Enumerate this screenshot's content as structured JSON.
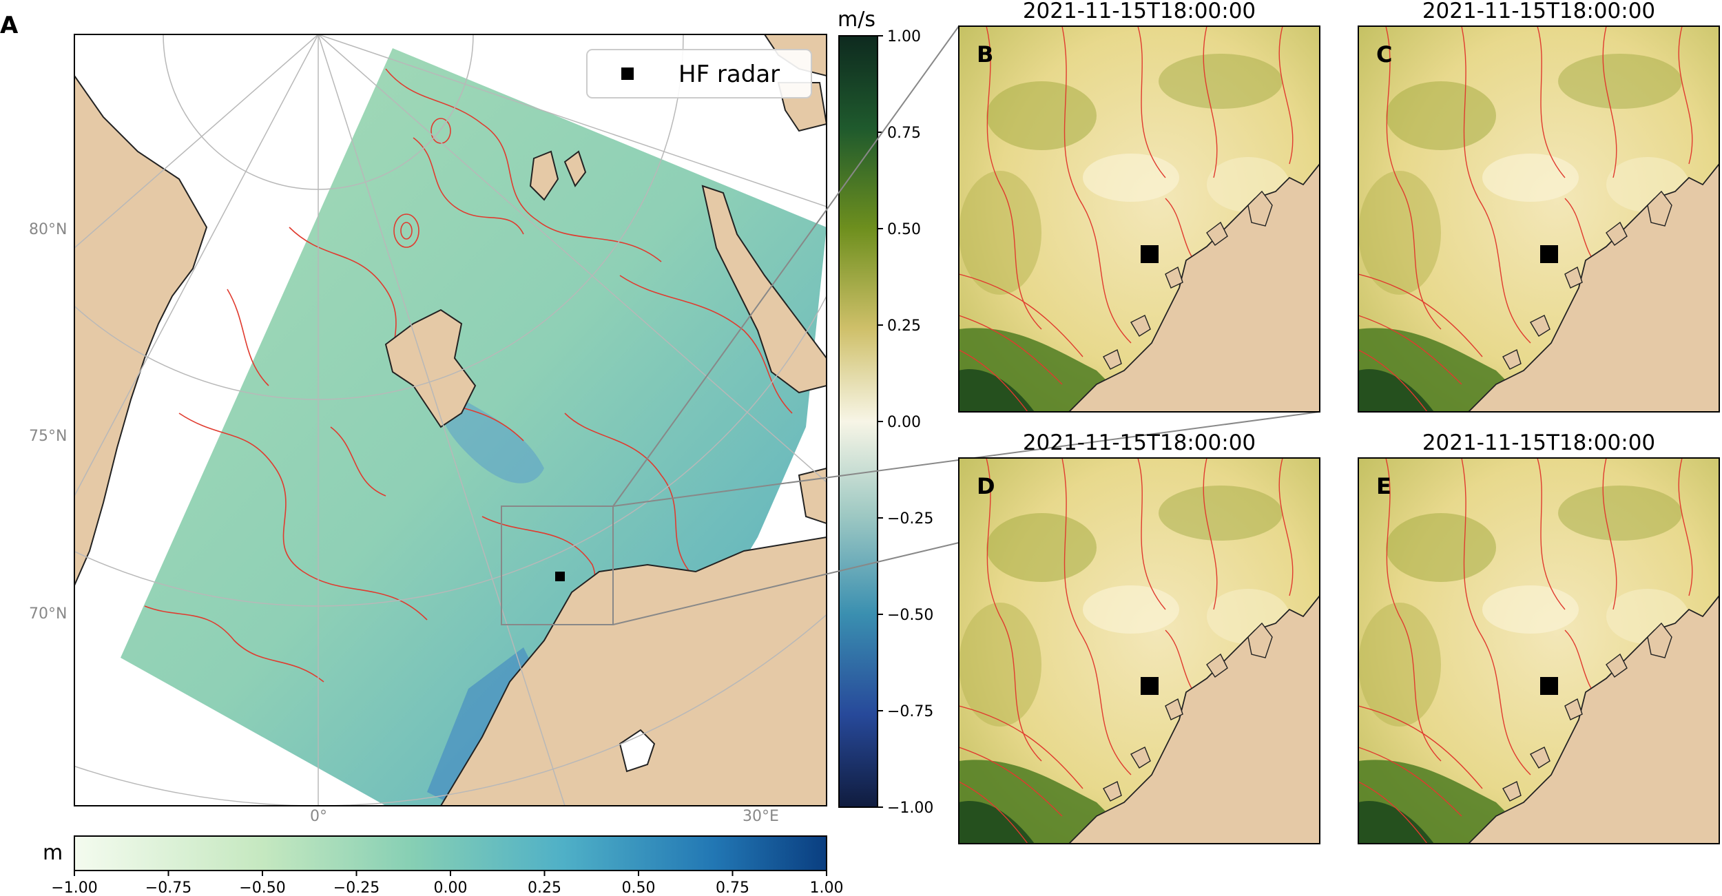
{
  "figure": {
    "panel_a": {
      "letter": "A",
      "legend_label": "HF radar",
      "lat_labels": [
        "80°N",
        "75°N",
        "70°N"
      ],
      "lon_labels": [
        "0°",
        "30°E"
      ]
    },
    "colorbar_vertical": {
      "unit": "m/s",
      "ticks": [
        "1.00",
        "0.75",
        "0.50",
        "0.25",
        "0.00",
        "−0.25",
        "−0.50",
        "−0.75",
        "−1.00"
      ]
    },
    "colorbar_horizontal": {
      "unit": "m",
      "ticks": [
        "−1.00",
        "−0.75",
        "−0.50",
        "−0.25",
        "0.00",
        "0.25",
        "0.50",
        "0.75",
        "1.00"
      ]
    },
    "panels": [
      {
        "letter": "B",
        "time": "2021-11-15T18:00:00"
      },
      {
        "letter": "C",
        "time": "2021-11-15T18:00:00"
      },
      {
        "letter": "D",
        "time": "2021-11-15T18:00:00"
      },
      {
        "letter": "E",
        "time": "2021-11-15T18:00:00"
      }
    ]
  },
  "colors": {
    "land": "#e5c9a6",
    "contour": "#e03a2e",
    "grid": "#b8b8b8",
    "radar_marker": "#000000"
  }
}
